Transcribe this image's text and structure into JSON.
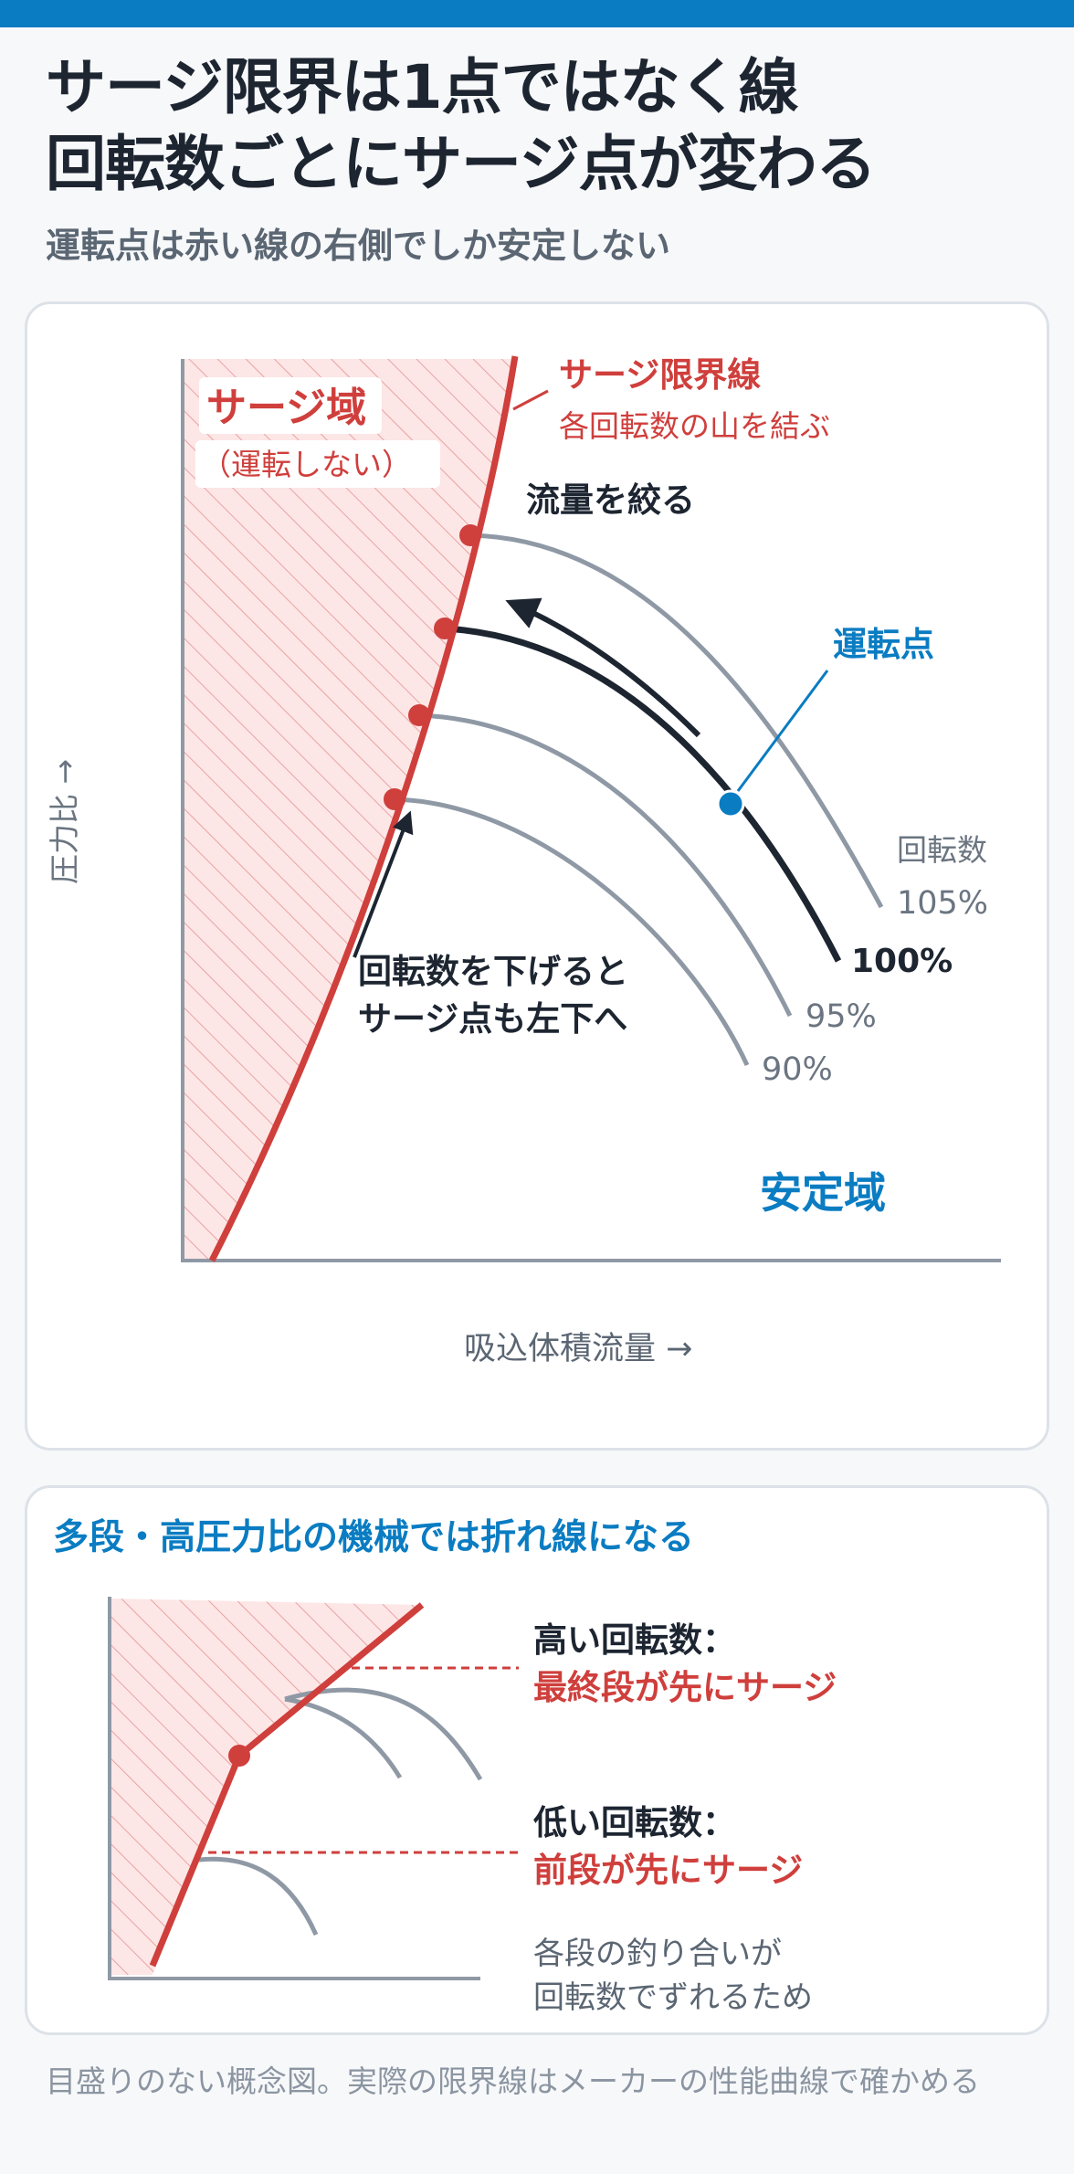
{
  "header": {
    "title_line1": "サージ限界は1点ではなく線",
    "title_line2": "回転数ごとにサージ点が変わる",
    "subtitle": "運転点は赤い線の右側でしか安定しない"
  },
  "main_diagram": {
    "surge_zone_label": "サージ域",
    "surge_zone_sub": "（運転しない）",
    "surge_line_label": "サージ限界線",
    "surge_line_sub": "各回転数の山を結ぶ",
    "throttle_label": "流量を絞る",
    "operating_point_label": "運転点",
    "speed_legend_title": "回転数",
    "speed_curves": [
      {
        "name": "105%"
      },
      {
        "name": "100%"
      },
      {
        "name": "95%"
      },
      {
        "name": "90%"
      }
    ],
    "speed_down_note_line1": "回転数を下げると",
    "speed_down_note_line2": "サージ点も左下へ",
    "stable_zone_label": "安定域",
    "y_axis_label": "圧力比 →",
    "x_axis_label": "吸込体積流量 →"
  },
  "multistage": {
    "title": "多段・高圧力比の機械では折れ線になる",
    "high_speed_label": "高い回転数：",
    "high_speed_note": "最終段が先にサージ",
    "low_speed_label": "低い回転数：",
    "low_speed_note": "前段が先にサージ",
    "reason_line1": "各段の釣り合いが",
    "reason_line2": "回転数でずれるため"
  },
  "footer": "目盛りのない概念図。実際の限界線はメーカーの性能曲線で確かめる",
  "colors": {
    "accent_blue": "#0a7cc2",
    "surge_red": "#cf3f3c",
    "surge_fill": "#fde6e6",
    "curve_gray": "#8f99a5",
    "curve_dark": "#1d2531"
  }
}
